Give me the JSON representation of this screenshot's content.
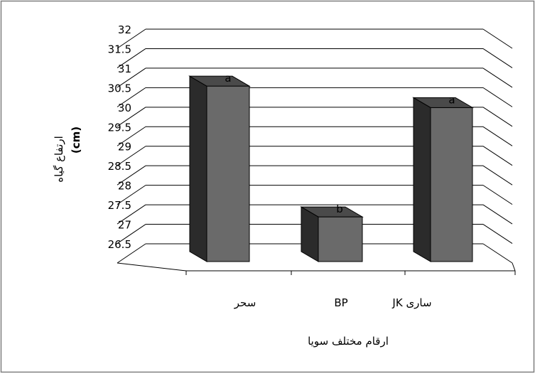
{
  "chart_data": {
    "type": "bar",
    "style": "3d-column",
    "categories": [
      "سحر",
      "BP",
      "ساری JK"
    ],
    "values": [
      31.05,
      27.7,
      30.5
    ],
    "significance_labels": [
      "a",
      "b",
      "a"
    ],
    "ylim": [
      26.5,
      32
    ],
    "yticks": [
      "32",
      "31.5",
      "31",
      "30.5",
      "30",
      "29.5",
      "29",
      "28.5",
      "28",
      "27.5",
      "27",
      "26.5"
    ],
    "ytick_values": [
      32,
      31.5,
      31,
      30.5,
      30,
      29.5,
      29,
      28.5,
      28,
      27.5,
      27,
      26.5
    ],
    "ylabel": "ارتفاع گیاه",
    "ylabel_unit": "(cm)",
    "xlabel": "ارقام مختلف سویا",
    "title": "",
    "legend": "none",
    "grid": true,
    "colors": {
      "bar_front": "#6a6a6a",
      "bar_top": "#4a4a4a",
      "bar_side": "#2b2b2b",
      "grid": "#000000",
      "frame": "#7f7f7f"
    }
  }
}
